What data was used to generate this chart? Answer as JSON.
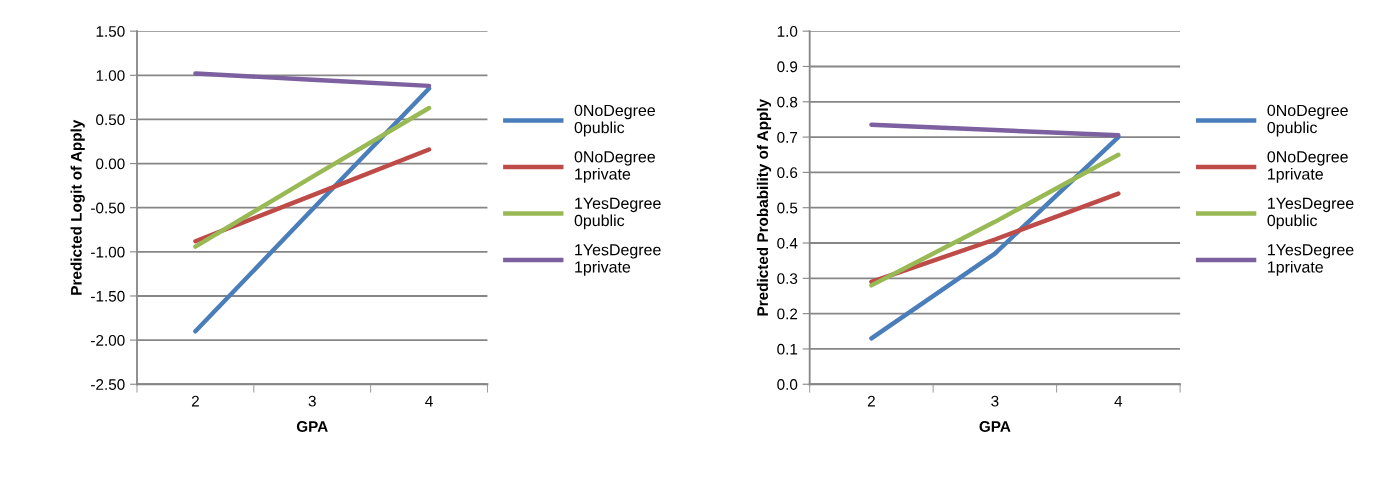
{
  "chart_data": [
    {
      "type": "line",
      "xlabel": "GPA",
      "ylabel": "Predicted Logit of Apply",
      "categories": [
        "2",
        "3",
        "4"
      ],
      "series": [
        {
          "name": "0NoDegree\n0public",
          "color": "#4a7ebb",
          "values": [
            -1.9,
            -0.52,
            0.85
          ]
        },
        {
          "name": "0NoDegree\n1private",
          "color": "#be4b48",
          "values": [
            -0.88,
            -0.36,
            0.16
          ]
        },
        {
          "name": "1YesDegree\n0public",
          "color": "#98b954",
          "values": [
            -0.94,
            -0.15,
            0.63
          ]
        },
        {
          "name": "1YesDegree\n1private",
          "color": "#7d60a0",
          "values": [
            1.02,
            0.95,
            0.88
          ]
        }
      ],
      "ylim": [
        -2.5,
        1.5
      ],
      "yticks": [
        {
          "value": -2.5,
          "label": "-2.50"
        },
        {
          "value": -2.0,
          "label": "-2.00"
        },
        {
          "value": -1.5,
          "label": "-1.50"
        },
        {
          "value": -1.0,
          "label": "-1.00"
        },
        {
          "value": -0.5,
          "label": "-0.50"
        },
        {
          "value": 0,
          "label": "0.00"
        },
        {
          "value": 0.5,
          "label": "0.50"
        },
        {
          "value": 1.0,
          "label": "1.00"
        },
        {
          "value": 1.5,
          "label": "1.50"
        }
      ],
      "grid": "y",
      "legend": "right",
      "marker": "none",
      "line_style": "solid"
    },
    {
      "type": "line",
      "xlabel": "GPA",
      "ylabel": "Predicted Probability of Apply",
      "categories": [
        "2",
        "3",
        "4"
      ],
      "series": [
        {
          "name": "0NoDegree\n0public",
          "color": "#4a7ebb",
          "values": [
            0.13,
            0.37,
            0.7
          ]
        },
        {
          "name": "0NoDegree\n1private",
          "color": "#be4b48",
          "values": [
            0.29,
            0.41,
            0.54
          ]
        },
        {
          "name": "1YesDegree\n0public",
          "color": "#98b954",
          "values": [
            0.28,
            0.46,
            0.65
          ]
        },
        {
          "name": "1YesDegree\n1private",
          "color": "#7d60a0",
          "values": [
            0.735,
            0.72,
            0.705
          ]
        }
      ],
      "ylim": [
        0,
        1
      ],
      "yticks": [
        {
          "value": 0,
          "label": "0.0"
        },
        {
          "value": 0.1,
          "label": "0.1"
        },
        {
          "value": 0.2,
          "label": "0.2"
        },
        {
          "value": 0.3,
          "label": "0.3"
        },
        {
          "value": 0.4,
          "label": "0.4"
        },
        {
          "value": 0.5,
          "label": "0.5"
        },
        {
          "value": 0.6,
          "label": "0.6"
        },
        {
          "value": 0.7,
          "label": "0.7"
        },
        {
          "value": 0.8,
          "label": "0.8"
        },
        {
          "value": 0.9,
          "label": "0.9"
        },
        {
          "value": 1.0,
          "label": "1.0"
        }
      ],
      "grid": "y",
      "legend": "right",
      "marker": "none",
      "line_style": "solid"
    }
  ]
}
